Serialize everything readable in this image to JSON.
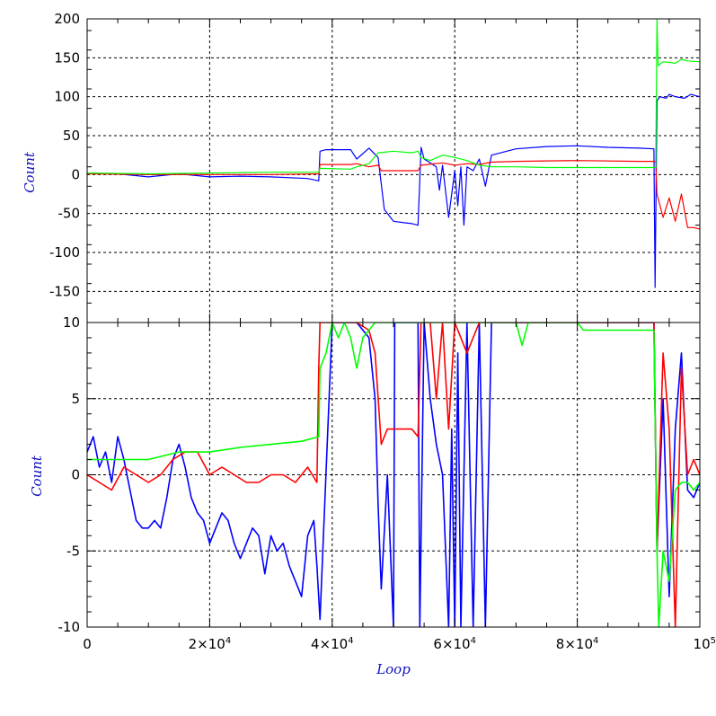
{
  "chart_data": [
    {
      "type": "line",
      "panel": "top",
      "ylabel": "Count",
      "xlabel": "",
      "xlim": [
        0,
        100000
      ],
      "ylim": [
        -190,
        200
      ],
      "grid": true,
      "y_ticks": [
        200,
        150,
        100,
        50,
        0,
        -50,
        -100,
        -150
      ],
      "y_tick_labels": [
        "200",
        "150",
        "100",
        "50",
        "0",
        "-50",
        "-100",
        "-150"
      ],
      "series": [
        {
          "color": "#0000ff",
          "x": [
            0,
            5000,
            10000,
            15000,
            20000,
            25000,
            30000,
            36000,
            37800,
            38000,
            39000,
            43000,
            44000,
            46000,
            47500,
            48500,
            50000,
            52000,
            53000,
            54000,
            54500,
            55000,
            56000,
            57000,
            57500,
            58000,
            59000,
            60000,
            60500,
            61000,
            61500,
            62000,
            63000,
            64000,
            65000,
            66000,
            70000,
            75000,
            80000,
            85000,
            90000,
            92500,
            92700,
            93000,
            93500,
            94500,
            95000,
            96000,
            97500,
            98500,
            100000
          ],
          "values": [
            2,
            1,
            -3,
            1,
            -3,
            -2,
            -3,
            -5,
            -8,
            30,
            32,
            32,
            20,
            34,
            22,
            -45,
            -60,
            -62,
            -63,
            -65,
            35,
            20,
            15,
            10,
            -20,
            12,
            -55,
            5,
            -40,
            10,
            -65,
            10,
            5,
            20,
            -15,
            25,
            33,
            36,
            37,
            35,
            34,
            33,
            -145,
            95,
            100,
            98,
            103,
            100,
            98,
            103,
            100
          ]
        },
        {
          "color": "#ff0000",
          "x": [
            0,
            10000,
            20000,
            30000,
            37800,
            38000,
            43000,
            44000,
            46000,
            47500,
            48000,
            50000,
            54000,
            54500,
            58000,
            60000,
            62000,
            64000,
            66000,
            70000,
            80000,
            90000,
            92800,
            93000,
            94000,
            95000,
            96000,
            97000,
            98000,
            99000,
            100000
          ],
          "values": [
            1,
            0,
            0,
            0,
            1,
            13,
            13,
            14,
            10,
            12,
            5,
            5,
            5,
            12,
            15,
            12,
            14,
            13,
            16,
            17,
            18,
            17,
            17,
            -25,
            -55,
            -30,
            -60,
            -25,
            -68,
            -68,
            -70
          ]
        },
        {
          "color": "#00ff00",
          "x": [
            0,
            10000,
            20000,
            30000,
            37800,
            38000,
            43000,
            44000,
            46000,
            47500,
            50000,
            53000,
            54000,
            54500,
            56000,
            58000,
            60000,
            62000,
            64000,
            66000,
            70000,
            75000,
            80000,
            85000,
            90000,
            92800,
            93000,
            93200,
            94000,
            96000,
            97000,
            98000,
            100000
          ],
          "values": [
            2,
            1,
            2,
            3,
            3,
            8,
            7,
            10,
            14,
            28,
            30,
            28,
            30,
            22,
            18,
            25,
            22,
            18,
            12,
            10,
            10,
            9,
            9,
            9,
            9,
            9,
            200,
            140,
            145,
            143,
            148,
            146,
            145
          ]
        }
      ]
    },
    {
      "type": "line",
      "panel": "bottom",
      "ylabel": "Count",
      "xlabel": "Loop",
      "xlim": [
        0,
        100000
      ],
      "ylim": [
        -10,
        10
      ],
      "grid": true,
      "y_ticks": [
        10,
        5,
        0,
        -5,
        -10
      ],
      "y_tick_labels": [
        "10",
        "5",
        "0",
        "-5",
        "-10"
      ],
      "x_ticks": [
        0,
        20000,
        40000,
        60000,
        80000,
        100000
      ],
      "x_tick_labels": [
        {
          "base": "0",
          "exp": ""
        },
        {
          "base": "2×10",
          "exp": "4"
        },
        {
          "base": "4×10",
          "exp": "4"
        },
        {
          "base": "6×10",
          "exp": "4"
        },
        {
          "base": "8×10",
          "exp": "4"
        },
        {
          "base": "10",
          "exp": "5"
        }
      ],
      "series": [
        {
          "color": "#0000ff",
          "x": [
            0,
            1000,
            2000,
            3000,
            4000,
            5000,
            6000,
            7000,
            8000,
            9000,
            10000,
            11000,
            12000,
            13000,
            14000,
            15000,
            16000,
            17000,
            18000,
            19000,
            20000,
            21000,
            22000,
            23000,
            24000,
            25000,
            26000,
            27000,
            28000,
            29000,
            30000,
            31000,
            32000,
            33000,
            34000,
            35000,
            36000,
            37000,
            37500,
            38000,
            40000,
            42000,
            44000,
            46000,
            47000,
            47500,
            48000,
            49000,
            50000,
            50200,
            51000,
            52000,
            53000,
            54000,
            54300,
            55000,
            56000,
            57000,
            58000,
            59000,
            59500,
            60000,
            60500,
            61000,
            62000,
            63000,
            64000,
            65000,
            66000,
            70000,
            80000,
            90000,
            92500,
            93000,
            94000,
            95000,
            96000,
            97000,
            98000,
            99000,
            100000
          ],
          "values": [
            1.5,
            2.5,
            0.5,
            1.5,
            -0.5,
            2.5,
            1,
            -1,
            -3,
            -3.5,
            -3.5,
            -3,
            -3.5,
            -1.5,
            1,
            2,
            0.5,
            -1.5,
            -2.5,
            -3,
            -4.5,
            -3.5,
            -2.5,
            -3,
            -4.5,
            -5.5,
            -4.5,
            -3.5,
            -4,
            -6.5,
            -4,
            -5,
            -4.5,
            -6,
            -7,
            -8,
            -4,
            -3,
            -6,
            -9.5,
            10,
            10,
            10,
            9,
            5,
            -2,
            -7.5,
            0,
            -10,
            10,
            10,
            10,
            10,
            10,
            -10,
            10,
            5,
            2,
            0,
            -10,
            3,
            -10,
            8,
            -10,
            10,
            -10,
            10,
            -10,
            10,
            10,
            10,
            10,
            10,
            -5,
            5,
            -8,
            3,
            8,
            -1,
            -1.5,
            -0.5
          ]
        },
        {
          "color": "#ff0000",
          "x": [
            0,
            2000,
            4000,
            6000,
            8000,
            10000,
            12000,
            14000,
            16000,
            18000,
            20000,
            22000,
            24000,
            26000,
            28000,
            30000,
            32000,
            34000,
            36000,
            37500,
            37800,
            38000,
            40000,
            42000,
            44000,
            46000,
            47000,
            48000,
            49000,
            50000,
            51000,
            52000,
            53000,
            54000,
            54500,
            56000,
            57000,
            58000,
            59000,
            60000,
            62000,
            64000,
            66000,
            70000,
            80000,
            90000,
            92500,
            93000,
            94000,
            95000,
            96000,
            97000,
            98000,
            99000,
            100000
          ],
          "values": [
            0,
            -0.5,
            -1,
            0.5,
            0,
            -0.5,
            0,
            1,
            1.5,
            1.5,
            0,
            0.5,
            0,
            -0.5,
            -0.5,
            0,
            0,
            -0.5,
            0.5,
            -0.5,
            7,
            10,
            10,
            10,
            10,
            9.5,
            8,
            2,
            3,
            3,
            3,
            3,
            3,
            2.5,
            10,
            10,
            5,
            10,
            3,
            10,
            8,
            10,
            10,
            10,
            10,
            10,
            10,
            -5,
            8,
            3,
            -10,
            7,
            0,
            1,
            0
          ]
        },
        {
          "color": "#00ff00",
          "x": [
            0,
            5000,
            10000,
            15000,
            20000,
            25000,
            30000,
            35000,
            37800,
            38000,
            39000,
            40000,
            41000,
            42000,
            43000,
            44000,
            45000,
            46000,
            47000,
            48000,
            50000,
            52000,
            54000,
            55000,
            58000,
            60000,
            62000,
            64000,
            66000,
            70000,
            71000,
            72000,
            75000,
            80000,
            81000,
            85000,
            90000,
            92500,
            93000,
            93300,
            94000,
            95000,
            96000,
            97000,
            98000,
            99000,
            100000
          ],
          "values": [
            1,
            1,
            1,
            1.5,
            1.5,
            1.8,
            2,
            2.2,
            2.5,
            7,
            8,
            10,
            9,
            10,
            9,
            7,
            9,
            9.5,
            10,
            10,
            10,
            10,
            10,
            10,
            10,
            10,
            10,
            10,
            10,
            10,
            8.5,
            10,
            10,
            10,
            9.5,
            9.5,
            9.5,
            9.5,
            -5,
            -10,
            -5,
            -7,
            -1,
            -0.5,
            -0.5,
            -1,
            -0.5
          ]
        }
      ]
    }
  ]
}
